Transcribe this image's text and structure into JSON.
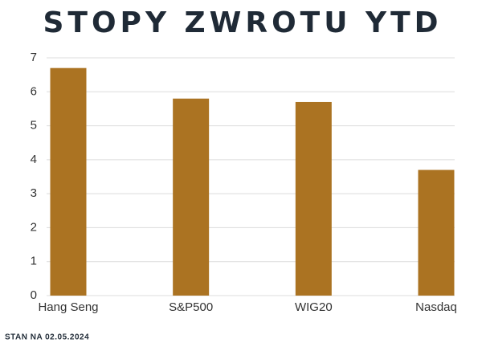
{
  "chart_data": {
    "type": "bar",
    "title": "STOPY ZWROTU YTD",
    "categories": [
      "Hang Seng",
      "S&P500",
      "WIG20",
      "Nasdaq"
    ],
    "values": [
      6.7,
      5.8,
      5.7,
      3.7
    ],
    "color": "#ab7322",
    "ylim": [
      0,
      7
    ],
    "yticks": [
      0,
      1,
      2,
      3,
      4,
      5,
      6,
      7
    ],
    "grid": true,
    "footnote": "STAN NA 02.05.2024"
  }
}
